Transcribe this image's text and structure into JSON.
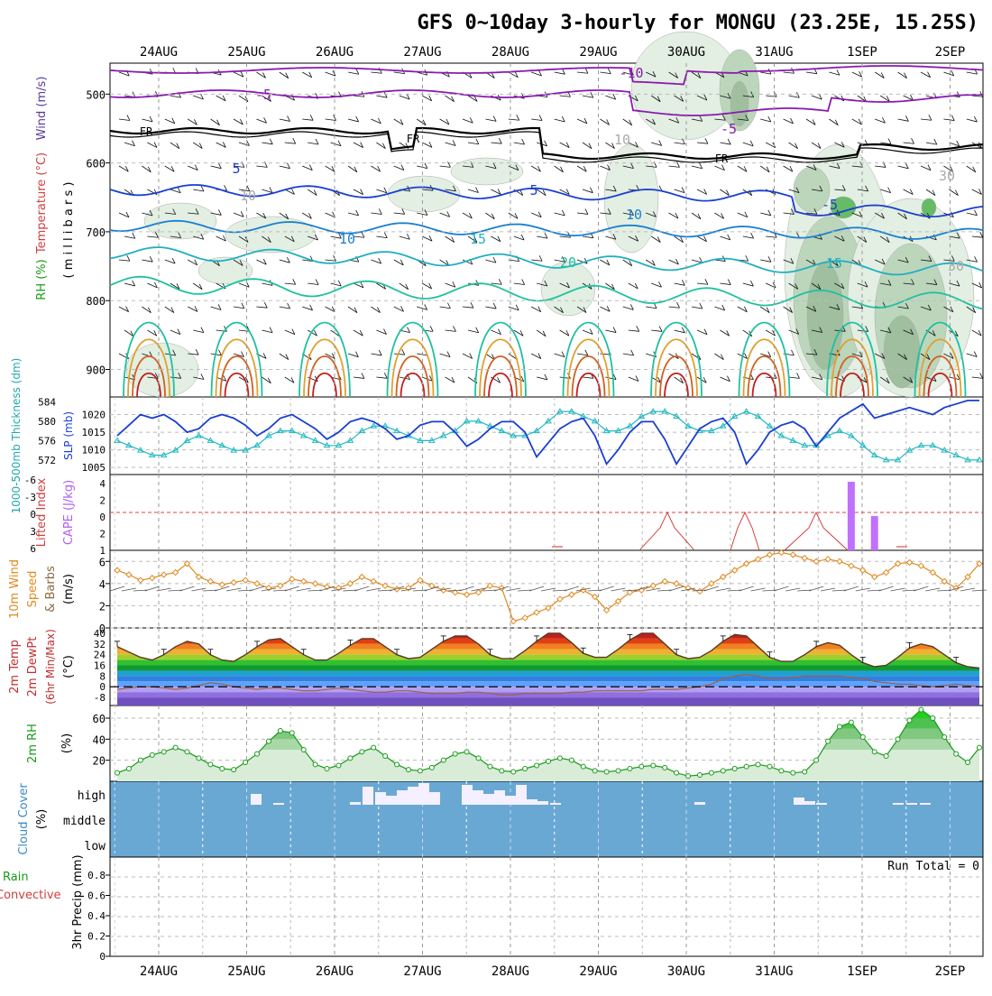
{
  "title": "GFS 0~10day 3-hourly for MONGU (23.25E, 15.25S)",
  "dates": [
    "24AUG",
    "25AUG",
    "26AUG",
    "27AUG",
    "28AUG",
    "29AUG",
    "30AUG",
    "31AUG",
    "1SEP",
    "2SEP"
  ],
  "panels": {
    "upper": {
      "label_wind": "Wind (m/s)",
      "label_temp": "Temperature (°C)",
      "label_rh": "RH (%)",
      "label_mb": "( m i l l i b a r s )",
      "ticks": [
        500,
        600,
        700,
        800,
        900
      ],
      "freezing": "FR",
      "contour_labels": [
        "-10",
        "-5",
        "-5",
        "5",
        "5",
        "10",
        "10",
        "15",
        "15",
        "20",
        "-5",
        "10",
        "10",
        "30",
        "30"
      ]
    },
    "slp": {
      "label_thk": "1000-500mb Thickness (dm)",
      "label_slp": "SLP (mb)",
      "thk_ticks": [
        584,
        580,
        576,
        572
      ],
      "slp_ticks": [
        1020,
        1015,
        1010,
        1005
      ]
    },
    "cape": {
      "label_li": "Lifted Index",
      "label_cape": "CAPE (J/kg)",
      "li_ticks": [
        "-6",
        "-3",
        "0",
        "3",
        "6"
      ],
      "cape_ticks": [
        "4",
        "2",
        "0",
        "2",
        "1"
      ]
    },
    "wind10": {
      "label_main": "10m Wind",
      "label_speed": "Speed",
      "label_barbs": "& Barbs",
      "label_units": "(m/s)",
      "ticks": [
        6,
        4,
        2,
        0
      ]
    },
    "temp": {
      "label_a": "2m Temp",
      "label_b": "2m DewPt",
      "label_c": "(6hr Min/Max)",
      "label_units": "(°C)",
      "ticks": [
        40,
        32,
        24,
        16,
        8,
        0,
        -8
      ]
    },
    "rh2m": {
      "label_main": "2m RH",
      "label_units": "(%)",
      "ticks": [
        60,
        40,
        20
      ]
    },
    "cloud": {
      "label_main": "Cloud Cover",
      "label_units": "(%)",
      "levels": [
        "high",
        "middle",
        "low"
      ]
    },
    "precip": {
      "label_a": "Total / Rain",
      "label_b": "Convective",
      "label_c": "3hr Precip (mm)",
      "run_total": "Run Total = 0",
      "ticks": [
        "0.8",
        "0.6",
        "0.4",
        "0.2",
        "0"
      ]
    }
  },
  "chart_data": [
    {
      "type": "line",
      "title": "1000-500mb Thickness / SLP",
      "series": [
        {
          "name": "SLP (mb)",
          "color": "#1a3fd0",
          "values": [
            1014,
            1017,
            1020,
            1019,
            1020,
            1018,
            1015,
            1016,
            1019,
            1020,
            1019,
            1017,
            1014,
            1016,
            1019,
            1020,
            1018,
            1016,
            1013,
            1015,
            1018,
            1019,
            1018,
            1016,
            1013,
            1014,
            1017,
            1018,
            1018,
            1015,
            1011,
            1013,
            1016,
            1018,
            1018,
            1015,
            1008,
            1012,
            1016,
            1018,
            1019,
            1014,
            1006,
            1010,
            1015,
            1018,
            1018,
            1013,
            1006,
            1011,
            1016,
            1018,
            1019,
            1015,
            1006,
            1010,
            1015,
            1017,
            1018,
            1016,
            1011,
            1015,
            1019,
            1021,
            1023,
            1019,
            1020,
            1021,
            1022,
            1021,
            1020,
            1022,
            1023,
            1024,
            1024
          ]
        },
        {
          "name": "1000-500mb Thickness (dm)",
          "color": "#20b8c0",
          "values": [
            576,
            575,
            574,
            573,
            573,
            574,
            576,
            577,
            576,
            575,
            574,
            574,
            575,
            577,
            578,
            578,
            577,
            576,
            575,
            575,
            576,
            578,
            579,
            579,
            578,
            577,
            576,
            576,
            577,
            578,
            580,
            580,
            579,
            578,
            577,
            577,
            578,
            580,
            582,
            582,
            581,
            580,
            578,
            578,
            579,
            581,
            582,
            582,
            581,
            579,
            578,
            578,
            579,
            581,
            582,
            581,
            579,
            577,
            576,
            575,
            575,
            577,
            578,
            577,
            575,
            573,
            572,
            572,
            574,
            575,
            575,
            574,
            573,
            572,
            572
          ]
        }
      ]
    },
    {
      "type": "line",
      "title": "10m Wind Speed",
      "series": [
        {
          "name": "Speed (m/s)",
          "color": "#e08a20",
          "values": [
            5.2,
            4.8,
            4.3,
            4.5,
            4.8,
            5.0,
            5.8,
            4.6,
            4.2,
            3.9,
            4.1,
            4.3,
            4.0,
            3.6,
            3.8,
            4.4,
            4.2,
            4.0,
            3.7,
            3.6,
            4.0,
            4.6,
            4.2,
            3.8,
            3.5,
            3.6,
            4.3,
            3.8,
            3.4,
            3.2,
            3.0,
            3.2,
            3.8,
            3.6,
            0.6,
            0.9,
            1.4,
            1.8,
            2.6,
            3.0,
            3.4,
            2.8,
            1.6,
            2.4,
            3.2,
            3.4,
            3.8,
            4.2,
            4.0,
            3.6,
            3.3,
            4.0,
            4.6,
            5.2,
            5.8,
            6.2,
            6.6,
            6.8,
            6.6,
            6.3,
            6.0,
            6.2,
            6.0,
            5.6,
            5.2,
            4.6,
            5.0,
            5.8,
            5.9,
            5.6,
            5.0,
            4.2,
            3.6,
            4.6,
            5.8
          ]
        }
      ]
    },
    {
      "type": "line",
      "title": "2m RH",
      "series": [
        {
          "name": "RH (%)",
          "color": "#1a9a1a",
          "values": [
            8,
            12,
            20,
            25,
            28,
            32,
            28,
            22,
            16,
            12,
            11,
            18,
            26,
            38,
            48,
            46,
            30,
            16,
            12,
            15,
            22,
            28,
            32,
            24,
            16,
            11,
            10,
            13,
            20,
            26,
            28,
            22,
            14,
            10,
            9,
            12,
            15,
            19,
            22,
            20,
            14,
            10,
            9,
            10,
            12,
            14,
            15,
            13,
            8,
            5,
            6,
            8,
            10,
            12,
            14,
            16,
            14,
            10,
            8,
            9,
            20,
            38,
            52,
            56,
            42,
            28,
            24,
            40,
            58,
            68,
            60,
            42,
            26,
            18,
            32
          ]
        }
      ]
    },
    {
      "type": "line",
      "title": "2m Temp / 2m DewPt",
      "series": [
        {
          "name": "2m Temp (°C)",
          "values": [
            30,
            26,
            22,
            20,
            24,
            30,
            34,
            32,
            24,
            20,
            19,
            24,
            30,
            35,
            36,
            30,
            24,
            20,
            20,
            25,
            31,
            36,
            36,
            30,
            24,
            21,
            22,
            28,
            34,
            38,
            38,
            32,
            24,
            21,
            21,
            27,
            34,
            40,
            40,
            33,
            25,
            22,
            22,
            28,
            35,
            40,
            40,
            32,
            24,
            21,
            22,
            27,
            34,
            39,
            38,
            30,
            22,
            19,
            19,
            24,
            30,
            33,
            31,
            24,
            18,
            15,
            16,
            22,
            29,
            32,
            30,
            24,
            18,
            15,
            14
          ]
        },
        {
          "name": "2m DewPt (°C)",
          "values": [
            -2,
            -1,
            0,
            0,
            -1,
            -2,
            -1,
            1,
            3,
            2,
            0,
            -1,
            -2,
            -1,
            -1,
            -2,
            -3,
            -3,
            -2,
            -1,
            -2,
            -3,
            -4,
            -4,
            -3,
            -3,
            -4,
            -5,
            -5,
            -5,
            -4,
            -4,
            -5,
            -6,
            -6,
            -5,
            -5,
            -5,
            -5,
            -4,
            -4,
            -3,
            -3,
            -3,
            -3,
            -3,
            -2,
            -2,
            -2,
            -1,
            0,
            2,
            6,
            8,
            9,
            8,
            6,
            6,
            7,
            8,
            8,
            8,
            8,
            7,
            6,
            4,
            3,
            2,
            2,
            1,
            0,
            1,
            2,
            1,
            0
          ]
        }
      ]
    },
    {
      "type": "bar",
      "title": "CAPE",
      "series": [
        {
          "name": "CAPE (J/kg)",
          "color": "#c070ff",
          "values": [
            0,
            0,
            0,
            0,
            0,
            0,
            0,
            0,
            0,
            0,
            0,
            0,
            0,
            0,
            0,
            0,
            0,
            0,
            0,
            0,
            0,
            0,
            0,
            0,
            0,
            0,
            0,
            0,
            0,
            0,
            0,
            0,
            0,
            0,
            0,
            0,
            0,
            0,
            0,
            0,
            0,
            0,
            0,
            0,
            0,
            0,
            0,
            0,
            0,
            0,
            0,
            0,
            0,
            0,
            0,
            0,
            0,
            0,
            0,
            0,
            0,
            0,
            0,
            4,
            0,
            2,
            0,
            0,
            0,
            0,
            0,
            0,
            0,
            0,
            0
          ]
        }
      ]
    },
    {
      "type": "bar",
      "title": "Cloud Cover",
      "series": [
        {
          "name": "high",
          "color": "#f4f0ff",
          "values": [
            0,
            0,
            0,
            0,
            0,
            0,
            0,
            0,
            0,
            0,
            0,
            0,
            0,
            0,
            0,
            12,
            2,
            0,
            0,
            0,
            0,
            0,
            0,
            0,
            0,
            0,
            0,
            0,
            0,
            0,
            0,
            0,
            0,
            0,
            0,
            0,
            0,
            0,
            0,
            0,
            0,
            0,
            0,
            0,
            0,
            0,
            0,
            0,
            0,
            0,
            0,
            0,
            0,
            0,
            0,
            0,
            0,
            0,
            0,
            0,
            0,
            0,
            0,
            0,
            0,
            0,
            0,
            0,
            0,
            0,
            0,
            0,
            0,
            0,
            0
          ]
        }
      ]
    },
    {
      "type": "bar",
      "title": "3hr Precip",
      "series": [
        {
          "name": "Total / Rain (mm)",
          "values": [
            0,
            0,
            0,
            0,
            0,
            0,
            0,
            0,
            0,
            0
          ]
        }
      ]
    }
  ]
}
